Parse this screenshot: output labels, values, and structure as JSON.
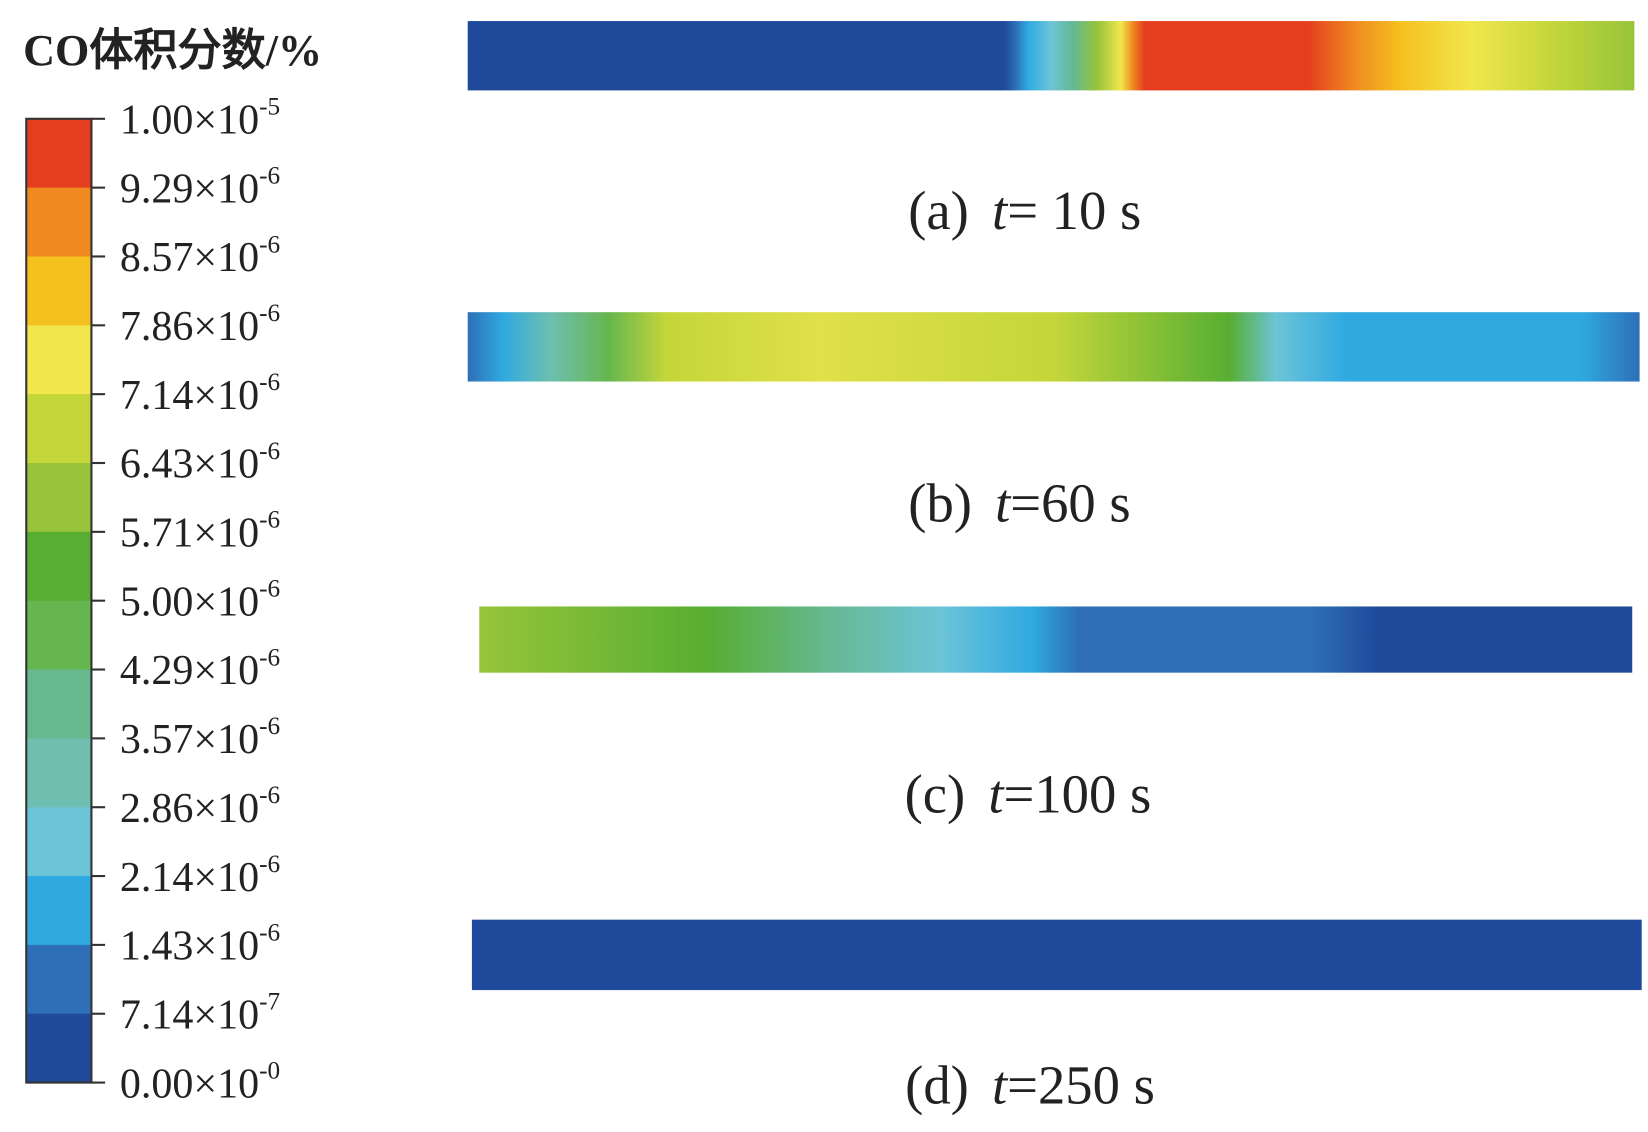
{
  "colorbar": {
    "title": "CO体积分数/%",
    "colors": [
      "#e53e1f",
      "#ef8a20",
      "#f5c11f",
      "#f1e64c",
      "#c4d63a",
      "#97c43a",
      "#57ae32",
      "#66b64f",
      "#66b88f",
      "#6ebfb0",
      "#6cc4d8",
      "#2fa9e0",
      "#2e6fb8",
      "#1f4a9c"
    ],
    "ticks": [
      {
        "mantissa": "1.00×10",
        "exponent": "-5"
      },
      {
        "mantissa": "9.29×10",
        "exponent": "-6"
      },
      {
        "mantissa": "8.57×10",
        "exponent": "-6"
      },
      {
        "mantissa": "7.86×10",
        "exponent": "-6"
      },
      {
        "mantissa": "7.14×10",
        "exponent": "-6"
      },
      {
        "mantissa": "6.43×10",
        "exponent": "-6"
      },
      {
        "mantissa": "5.71×10",
        "exponent": "-6"
      },
      {
        "mantissa": "5.00×10",
        "exponent": "-6"
      },
      {
        "mantissa": "4.29×10",
        "exponent": "-6"
      },
      {
        "mantissa": "3.57×10",
        "exponent": "-6"
      },
      {
        "mantissa": "2.86×10",
        "exponent": "-6"
      },
      {
        "mantissa": "2.14×10",
        "exponent": "-6"
      },
      {
        "mantissa": "1.43×10",
        "exponent": "-6"
      },
      {
        "mantissa": "7.14×10",
        "exponent": "-7"
      },
      {
        "mantissa": "0.00×10",
        "exponent": "-0"
      }
    ]
  },
  "panels": [
    {
      "label": "(a)",
      "variable": "t",
      "rest": "= 10 s"
    },
    {
      "label": "(b)",
      "variable": "t",
      "rest": "=60 s"
    },
    {
      "label": "(c)",
      "variable": "t",
      "rest": "=100 s"
    },
    {
      "label": "(d)",
      "variable": "t",
      "rest": "=250 s"
    }
  ]
}
